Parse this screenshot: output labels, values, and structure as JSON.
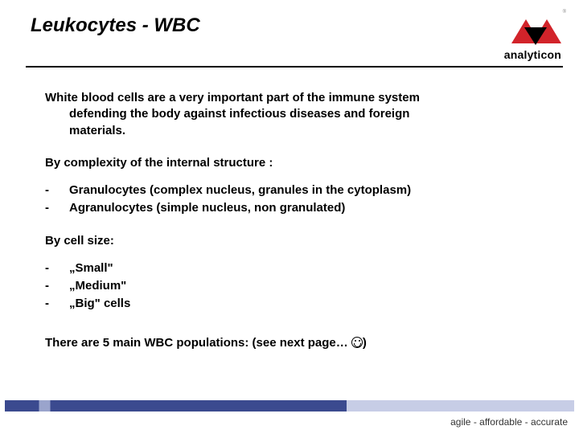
{
  "title": "Leukocytes - WBC",
  "logo": {
    "text": "analyticon",
    "tm": "®"
  },
  "intro": {
    "line1": "White blood cells are a very important part of the immune system",
    "line2": "defending the body against infectious diseases and foreign",
    "line3": "materials."
  },
  "section1": {
    "heading": "By complexity of the internal structure :",
    "items": [
      "Granulocytes (complex nucleus, granules in the cytoplasm)",
      "Agranulocytes (simple nucleus, non granulated)"
    ]
  },
  "section2": {
    "heading": "By cell size:",
    "items": [
      "„Small\"",
      "„Medium\"",
      "„Big\" cells"
    ]
  },
  "closing": {
    "pre": "There are 5 main WBC populations: (see next page… ",
    "post": ")"
  },
  "tagline": "agile - affordable - accurate",
  "colors": {
    "logo_red": "#d2232a",
    "logo_black": "#000000",
    "bar_dark": "#3b4a8f",
    "bar_light": "#c7cde6",
    "text": "#000000",
    "background": "#ffffff"
  }
}
